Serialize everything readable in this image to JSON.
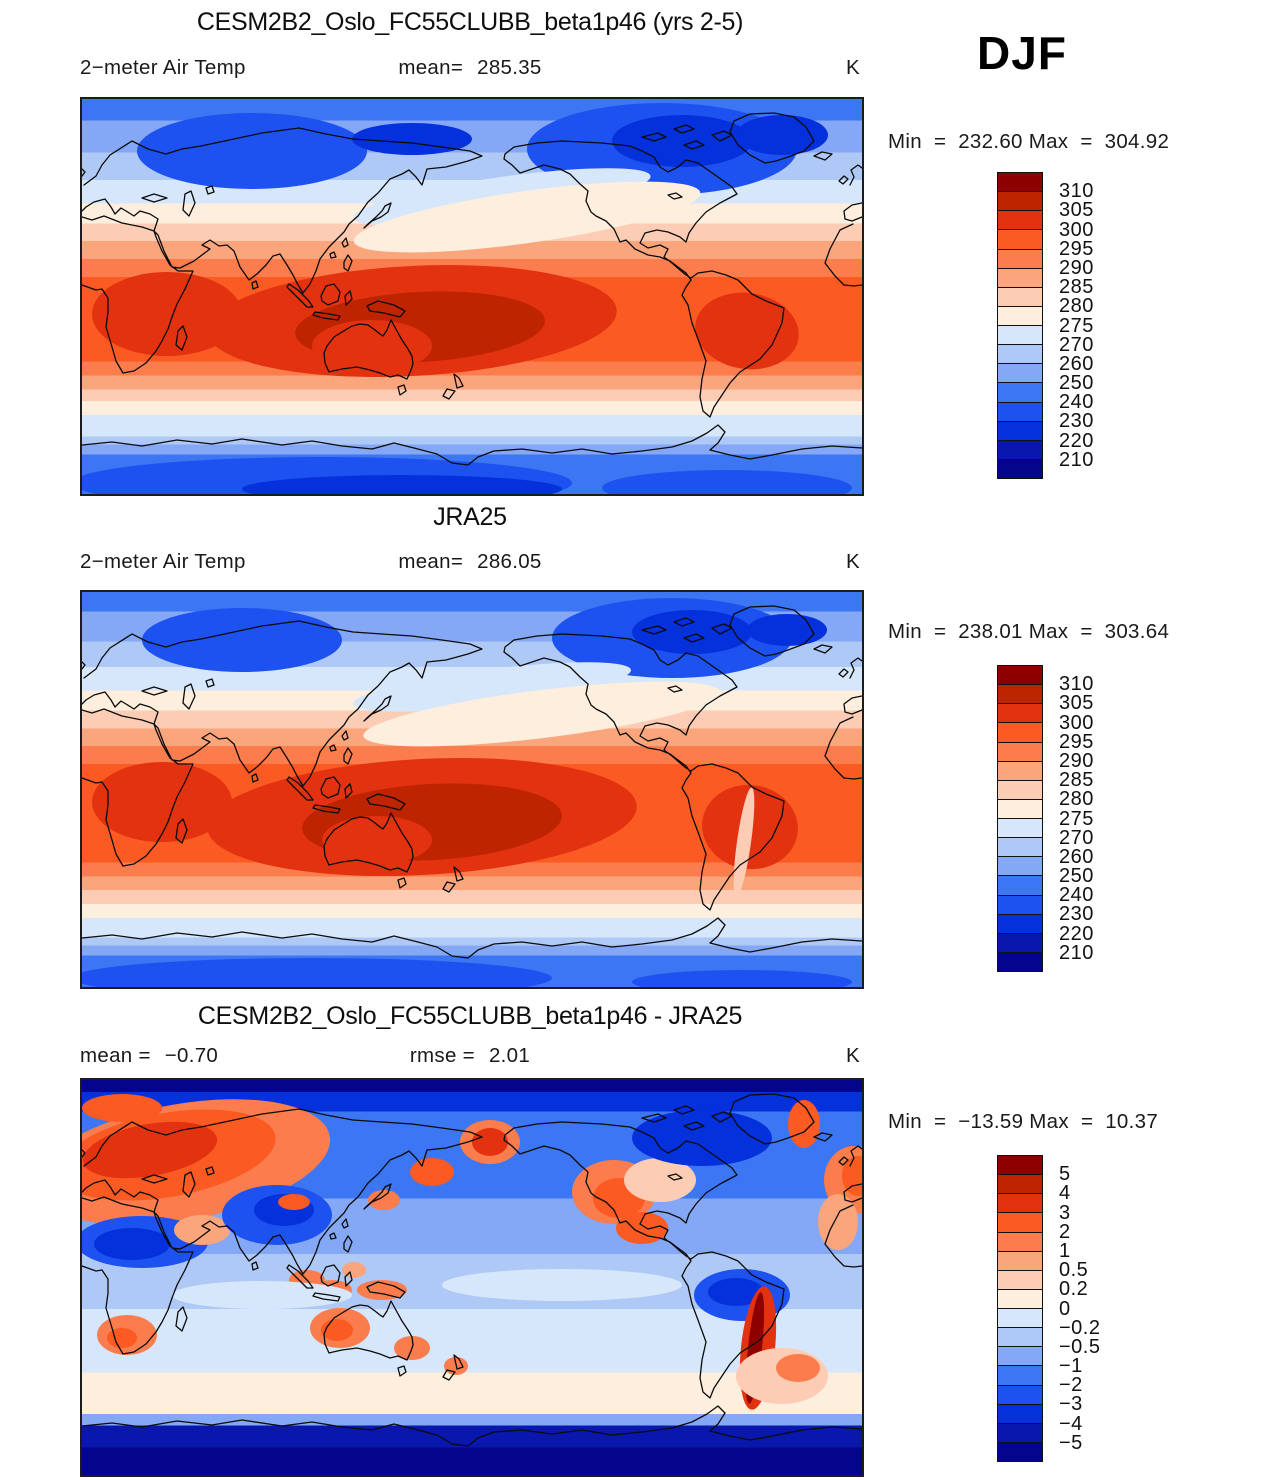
{
  "season_label": "DJF",
  "colors": {
    "palette16_high_to_low": [
      "#8E0000",
      "#BE2400",
      "#E23210",
      "#FB5A22",
      "#FB7C4C",
      "#FAA57C",
      "#FCCDB4",
      "#FDEEDD",
      "#D6E6FB",
      "#AFC9F7",
      "#84A8F5",
      "#3C76F2",
      "#1D52F0",
      "#0531DC",
      "#0917AC",
      "#04058C"
    ],
    "coastline": "#0b0b0b",
    "text": "#1a1a1a"
  },
  "panels": [
    {
      "id": "model",
      "title": "CESM2B2_Oslo_FC55CLUBB_beta1p46 (yrs 2-5)",
      "field_label": "2−meter Air Temp",
      "mean_label": "mean=",
      "mean": "285.35",
      "units": "K",
      "min_label": "Min",
      "max_label": "Max",
      "eq": "=",
      "min": "232.60",
      "max": "304.92",
      "colorbar_ticks": [
        "310",
        "305",
        "300",
        "295",
        "290",
        "285",
        "280",
        "275",
        "270",
        "260",
        "250",
        "240",
        "230",
        "220",
        "210"
      ]
    },
    {
      "id": "reference",
      "title": "JRA25",
      "field_label": "2−meter Air Temp",
      "mean_label": "mean=",
      "mean": "286.05",
      "units": "K",
      "min_label": "Min",
      "max_label": "Max",
      "eq": "=",
      "min": "238.01",
      "max": "303.64",
      "colorbar_ticks": [
        "310",
        "305",
        "300",
        "295",
        "290",
        "285",
        "280",
        "275",
        "270",
        "260",
        "250",
        "240",
        "230",
        "220",
        "210"
      ]
    },
    {
      "id": "difference",
      "title": "CESM2B2_Oslo_FC55CLUBB_beta1p46 - JRA25",
      "mean_label": "mean =",
      "mean": "−0.70",
      "rmse_label": "rmse =",
      "rmse": "2.01",
      "units": "K",
      "min_label": "Min",
      "max_label": "Max",
      "eq": "=",
      "min": "−13.59",
      "max": "10.37",
      "colorbar_ticks": [
        "5",
        "4",
        "3",
        "2",
        "1",
        "0.5",
        "0.2",
        "0",
        "−0.2",
        "−0.5",
        "−1",
        "−2",
        "−3",
        "−4",
        "−5"
      ]
    }
  ],
  "chart_data": [
    {
      "type": "heatmap",
      "subtype": "filled-contour-world-map",
      "title": "CESM2B2_Oslo_FC55CLUBB_beta1p46 (yrs 2-5)",
      "variable": "2-meter Air Temp",
      "season": "DJF",
      "units": "K",
      "mean": 285.35,
      "min": 232.6,
      "max": 304.92,
      "contour_levels": [
        210,
        220,
        230,
        240,
        250,
        260,
        270,
        275,
        280,
        285,
        290,
        295,
        300,
        305,
        310
      ],
      "palette_high_to_low": [
        "#8E0000",
        "#BE2400",
        "#E23210",
        "#FB5A22",
        "#FB7C4C",
        "#FAA57C",
        "#FCCDB4",
        "#FDEEDD",
        "#D6E6FB",
        "#AFC9F7",
        "#84A8F5",
        "#3C76F2",
        "#1D52F0",
        "#0531DC",
        "#0917AC",
        "#04058C"
      ],
      "legend_position": "right",
      "projection": "global lat-lon, Pacific-centered"
    },
    {
      "type": "heatmap",
      "subtype": "filled-contour-world-map",
      "title": "JRA25",
      "variable": "2-meter Air Temp",
      "season": "DJF",
      "units": "K",
      "mean": 286.05,
      "min": 238.01,
      "max": 303.64,
      "contour_levels": [
        210,
        220,
        230,
        240,
        250,
        260,
        270,
        275,
        280,
        285,
        290,
        295,
        300,
        305,
        310
      ],
      "palette_high_to_low": [
        "#8E0000",
        "#BE2400",
        "#E23210",
        "#FB5A22",
        "#FB7C4C",
        "#FAA57C",
        "#FCCDB4",
        "#FDEEDD",
        "#D6E6FB",
        "#AFC9F7",
        "#84A8F5",
        "#3C76F2",
        "#1D52F0",
        "#0531DC",
        "#0917AC",
        "#04058C"
      ],
      "legend_position": "right",
      "projection": "global lat-lon, Pacific-centered"
    },
    {
      "type": "heatmap",
      "subtype": "filled-contour-world-map",
      "title": "CESM2B2_Oslo_FC55CLUBB_beta1p46 - JRA25",
      "variable": "2-meter Air Temp difference",
      "season": "DJF",
      "units": "K",
      "mean": -0.7,
      "rmse": 2.01,
      "min": -13.59,
      "max": 10.37,
      "contour_levels": [
        -5,
        -4,
        -3,
        -2,
        -1,
        -0.5,
        -0.2,
        0,
        0.2,
        0.5,
        1,
        2,
        3,
        4,
        5
      ],
      "palette_high_to_low": [
        "#8E0000",
        "#BE2400",
        "#E23210",
        "#FB5A22",
        "#FB7C4C",
        "#FAA57C",
        "#FCCDB4",
        "#FDEEDD",
        "#D6E6FB",
        "#AFC9F7",
        "#84A8F5",
        "#3C76F2",
        "#1D52F0",
        "#0531DC",
        "#0917AC",
        "#04058C"
      ],
      "legend_position": "right",
      "projection": "global lat-lon, Pacific-centered"
    }
  ]
}
